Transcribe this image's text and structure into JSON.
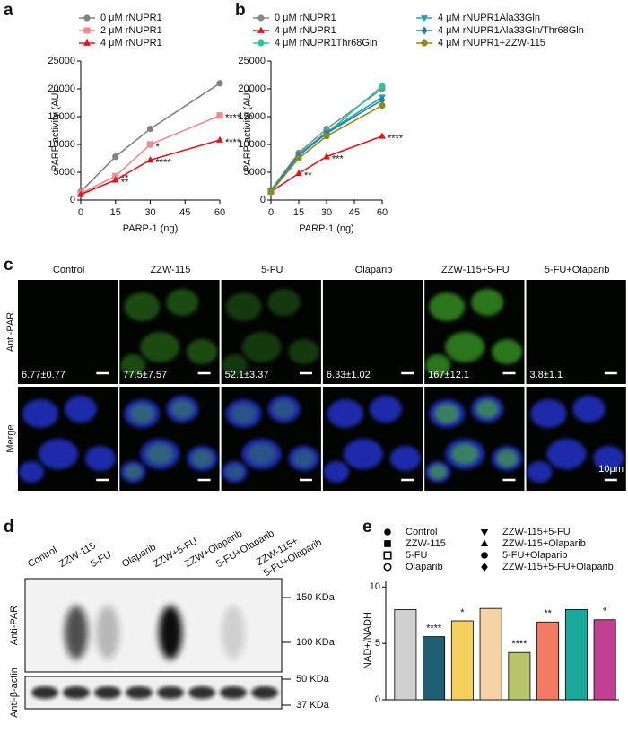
{
  "panel_labels": [
    "a",
    "b",
    "c",
    "d",
    "e"
  ],
  "chart_data": [
    {
      "type": "line",
      "x_label": "PARP-1 (ng)",
      "y_label": "PARP activity (AU)",
      "x": [
        0,
        15,
        30,
        60
      ],
      "xlim": [
        0,
        60
      ],
      "xticks": [
        0,
        15,
        30,
        45,
        60
      ],
      "ylim": [
        0,
        25000
      ],
      "yticks": [
        0,
        5000,
        10000,
        15000,
        20000,
        25000
      ],
      "series": [
        {
          "name": "0 μM rNUPR1",
          "color": "#808080",
          "marker": "circle",
          "values": [
            1500,
            7800,
            12800,
            21000
          ],
          "significance": [
            null,
            null,
            null,
            null
          ]
        },
        {
          "name": "2 μM rNUPR1",
          "color": "#f28a8a",
          "marker": "square",
          "values": [
            1200,
            4300,
            10000,
            15200
          ],
          "significance": [
            null,
            "**",
            "*",
            "****"
          ]
        },
        {
          "name": "4 μM rNUPR1",
          "color": "#e3141c",
          "marker": "triangle",
          "values": [
            1000,
            3600,
            7200,
            10800
          ],
          "significance": [
            null,
            "**",
            "****",
            "****"
          ]
        }
      ]
    },
    {
      "type": "line",
      "x_label": "PARP-1 (ng)",
      "y_label": "PARP activity (AU)",
      "x": [
        0,
        15,
        30,
        60
      ],
      "xlim": [
        0,
        60
      ],
      "xticks": [
        0,
        15,
        30,
        45,
        60
      ],
      "ylim": [
        0,
        25000
      ],
      "yticks": [
        0,
        5000,
        10000,
        15000,
        20000,
        25000
      ],
      "series": [
        {
          "name": "0 μM rNUPR1",
          "color": "#8a8a8a",
          "marker": "circle",
          "values": [
            1800,
            8500,
            12800,
            20000
          ],
          "significance": [
            null,
            null,
            null,
            null
          ]
        },
        {
          "name": "4 μM rNUPR1",
          "color": "#e3141c",
          "marker": "triangle",
          "values": [
            1500,
            4800,
            7800,
            11500
          ],
          "significance": [
            null,
            "**",
            "***",
            "****"
          ]
        },
        {
          "name": "4 μM rNUPR1Thr68Gln",
          "color": "#2ec49a",
          "marker": "circle",
          "values": [
            1600,
            8000,
            12000,
            20500
          ],
          "significance": [
            null,
            null,
            null,
            null
          ]
        },
        {
          "name": "4 μM rNUPR1Ala33Gln",
          "color": "#1aa6b4",
          "marker": "triangle-down",
          "values": [
            1700,
            8200,
            12200,
            18500
          ],
          "significance": [
            null,
            null,
            null,
            null
          ]
        },
        {
          "name": "4 μM rNUPR1Ala33Gln/Thr68Gln",
          "color": "#2a80a8",
          "marker": "diamond",
          "values": [
            1600,
            8100,
            12000,
            18000
          ],
          "significance": [
            null,
            null,
            null,
            null
          ]
        },
        {
          "name": "4 μM rNUPR1+ZZW-115",
          "color": "#8c8c1a",
          "marker": "circle",
          "values": [
            1500,
            7500,
            11500,
            17000
          ],
          "significance": [
            null,
            null,
            null,
            null
          ]
        }
      ]
    },
    {
      "type": "bar",
      "y_label": "NAD+/NADH",
      "categories": [
        "Control",
        "ZZW-115",
        "5-FU",
        "Olaparib",
        "ZZW-115+5-FU",
        "ZZW-115+Olaparib",
        "5-FU+Olaparib",
        "ZZW-115+5-FU+Olaparib"
      ],
      "values": [
        8.0,
        5.6,
        7.0,
        8.1,
        4.2,
        6.9,
        8.0,
        7.1
      ],
      "colors": [
        "#d0d0d0",
        "#1e5f74",
        "#f5cf5e",
        "#f5d3a4",
        "#b8c46b",
        "#f07b62",
        "#1aa89a",
        "#c1408f"
      ],
      "legend_markers": [
        "circle",
        "square",
        "square-open",
        "circle-open",
        "triangle-down",
        "triangle",
        "circle",
        "diamond"
      ],
      "significance": [
        null,
        "****",
        "*",
        null,
        "****",
        "**",
        null,
        "*"
      ],
      "ylim": [
        0,
        10.5
      ],
      "yticks": [
        0,
        5,
        10
      ]
    }
  ],
  "micrographs": {
    "columns": [
      "Control",
      "ZZW-115",
      "5-FU",
      "Olaparib",
      "ZZW-115+5-FU",
      "5-FU+Olaparib"
    ],
    "quantification": [
      "6.77±0.77",
      "77.5±7.57",
      "52.1±3.37",
      "6.33±1.02",
      "167±12.1",
      "3.8±1.1"
    ],
    "rows": [
      "Anti-PAR",
      "Merge"
    ],
    "scale_bar": "10μm"
  },
  "western_blot": {
    "lanes": [
      "Control",
      "ZZW-115",
      "5-FU",
      "Olaparib",
      "ZZW+5-FU",
      "ZZW+Olaparib",
      "5-FU+Olaparib",
      [
        "ZZW-115+",
        "5-FU+Olaparib"
      ]
    ],
    "markers": [
      "150 KDa",
      "100 KDa",
      "50 KDa",
      "37 KDa"
    ],
    "rows": [
      "Anti-PAR",
      "Anti-β-actin"
    ]
  }
}
